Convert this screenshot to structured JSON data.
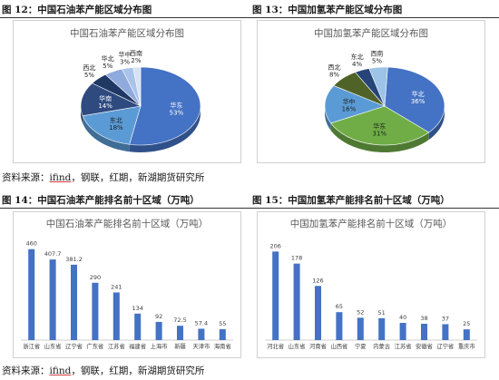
{
  "figures": {
    "fig12_title": "图 12：中国石油苯产能区域分布图",
    "fig13_title": "图 13：中国加氢苯产能区域分布图",
    "fig14_title": "图 14：中国石油苯产能排名前十区域（万吨）",
    "fig15_title": "图 15：中国加氢苯产能排名前十区域（万吨）",
    "source_prefix": "资料来源：",
    "source_ifind": "ifind",
    "source_rest": "，钢联，红期，新湖期货研究所"
  },
  "chart_data": [
    {
      "type": "pie",
      "title": "中国石油苯产能区域分布图",
      "slices": [
        {
          "name": "华东",
          "value": 53,
          "label": "53%",
          "color": "#4472c4"
        },
        {
          "name": "东北",
          "value": 18,
          "label": "18%",
          "color": "#5b9bd5"
        },
        {
          "name": "华南",
          "value": 14,
          "label": "14%",
          "color": "#2e4a7f"
        },
        {
          "name": "西北",
          "value": 5,
          "label": "5%",
          "color": "#1f3864"
        },
        {
          "name": "华北",
          "value": 5,
          "label": "5%",
          "color": "#8faadc"
        },
        {
          "name": "华中",
          "value": 3,
          "label": "3%",
          "color": "#a9c4eb"
        },
        {
          "name": "西南",
          "value": 2,
          "label": "2%",
          "color": "#d6e2f3"
        }
      ]
    },
    {
      "type": "pie",
      "title": "中国加氢苯产能区域分布图",
      "slices": [
        {
          "name": "华北",
          "value": 36,
          "label": "36%",
          "color": "#4472c4"
        },
        {
          "name": "华东",
          "value": 31,
          "label": "31%",
          "color": "#70ad47"
        },
        {
          "name": "华中",
          "value": 16,
          "label": "16%",
          "color": "#5b9bd5"
        },
        {
          "name": "西北",
          "value": 8,
          "label": "8%",
          "color": "#4f6228"
        },
        {
          "name": "东北",
          "value": 4,
          "label": "4%",
          "color": "#264478"
        },
        {
          "name": "西南",
          "value": 5,
          "label": "5%",
          "color": "#9dc3e6"
        }
      ]
    },
    {
      "type": "bar",
      "title": "中国石油苯产能排名前十区域（万吨）",
      "categories": [
        "浙江省",
        "山东省",
        "辽宁省",
        "广东省",
        "江苏省",
        "福建省",
        "上海市",
        "新疆",
        "天津市",
        "海南省"
      ],
      "values": [
        460,
        407.7,
        381.2,
        290,
        241,
        134,
        92,
        72.5,
        57.4,
        55
      ],
      "labels": [
        "460",
        "407.7",
        "381.2",
        "290",
        "241",
        "134",
        "92",
        "72.5",
        "57.4",
        "55"
      ],
      "ylim": [
        0,
        500
      ],
      "color": "#4472c4"
    },
    {
      "type": "bar",
      "title": "中国加氢苯产能排名前十区域（万吨）",
      "categories": [
        "河北省",
        "山东省",
        "河南省",
        "山西省",
        "宁夏",
        "内蒙古",
        "江苏省",
        "安徽省",
        "辽宁省",
        "重庆市"
      ],
      "values": [
        206,
        178,
        126,
        65,
        52,
        51,
        40,
        38,
        37,
        25
      ],
      "labels": [
        "206",
        "178",
        "126",
        "65",
        "52",
        "51",
        "40",
        "38",
        "37",
        "25"
      ],
      "ylim": [
        0,
        230
      ],
      "color": "#4472c4"
    }
  ]
}
